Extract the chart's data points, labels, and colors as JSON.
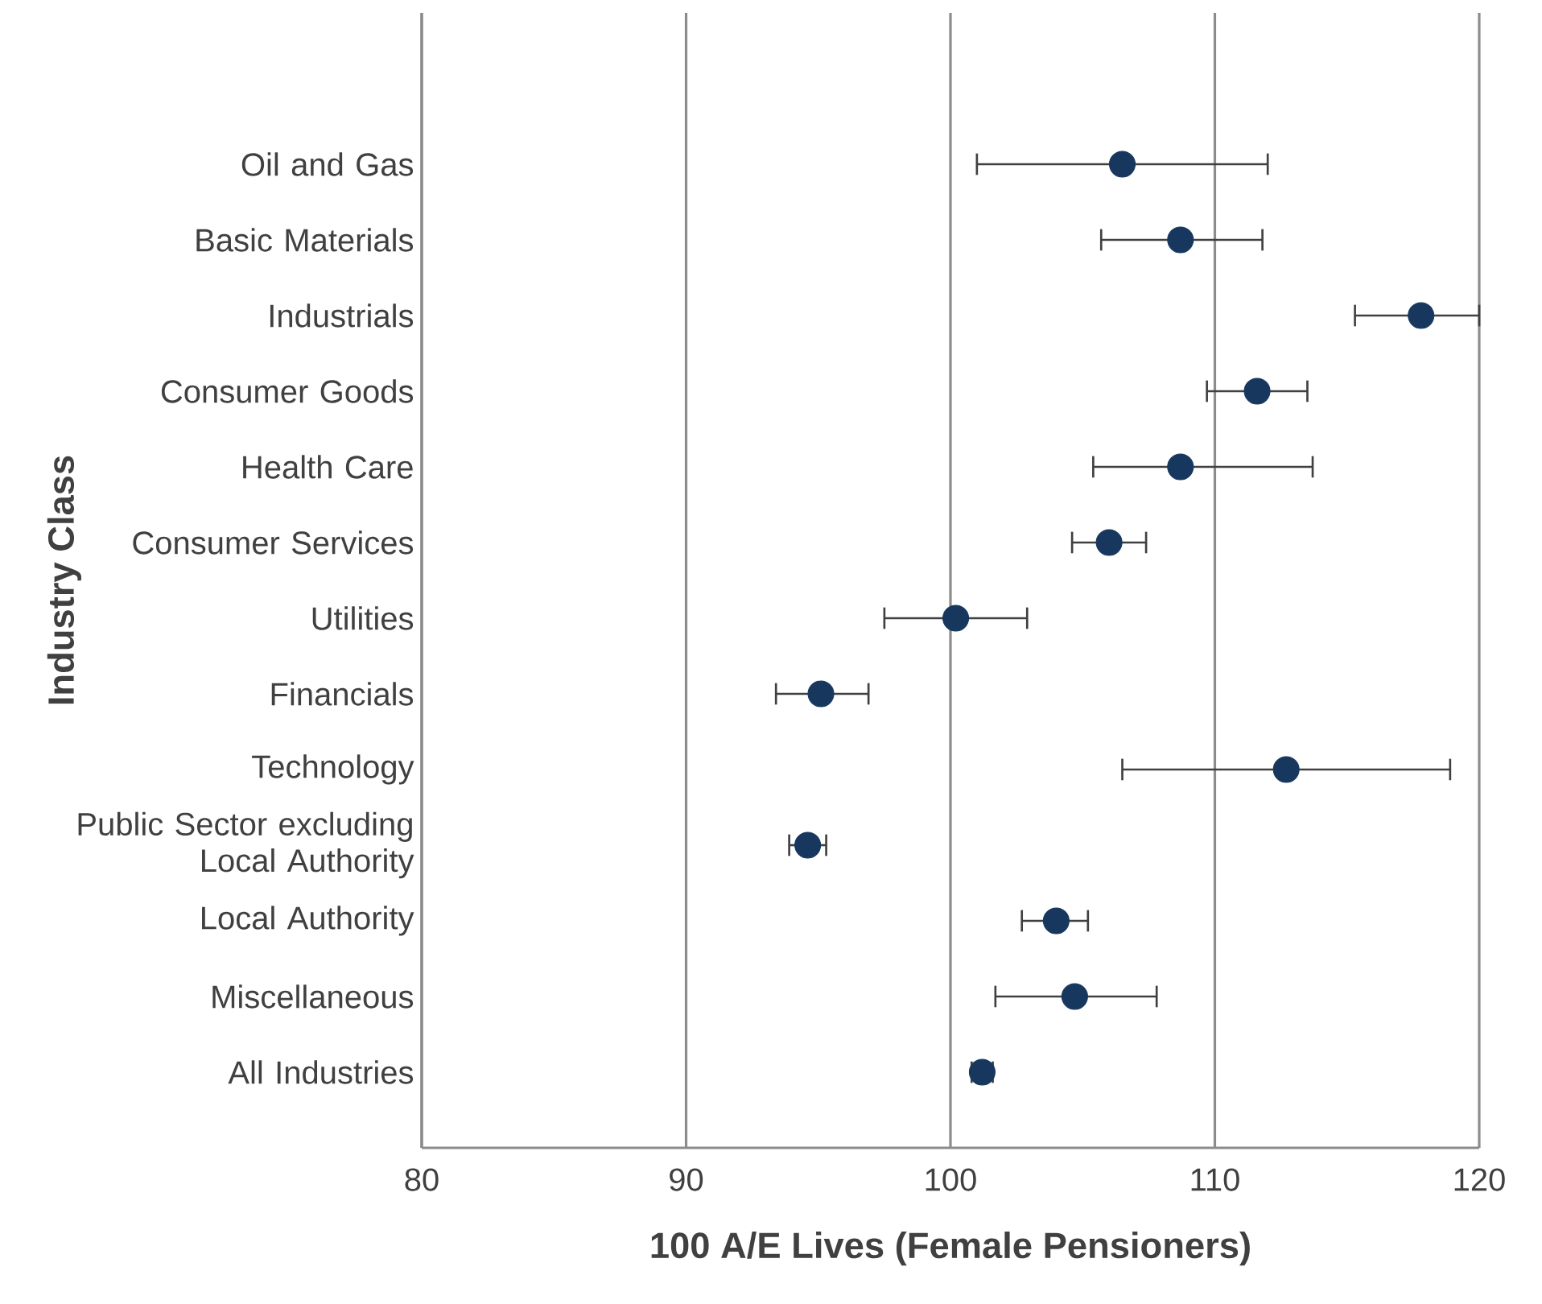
{
  "chart_data": {
    "type": "scatter",
    "orientation": "horizontal",
    "xlabel": "100 A/E Lives (Female Pensioners)",
    "ylabel": "Industry Class",
    "categories": [
      "Oil and Gas",
      "Basic Materials",
      "Industrials",
      "Consumer Goods",
      "Health Care",
      "Consumer Services",
      "Utilities",
      "Financials",
      "Technology",
      "Public Sector excluding Local Authority",
      "Local Authority",
      "Miscellaneous",
      "All Industries"
    ],
    "series": [
      {
        "color": "#17375e",
        "values": [
          106.5,
          108.7,
          117.8,
          111.6,
          108.7,
          106.0,
          100.2,
          95.1,
          112.7,
          94.6,
          104.0,
          104.7,
          101.2
        ],
        "errors": [
          [
            101.0,
            112.0
          ],
          [
            105.7,
            111.8
          ],
          [
            115.3,
            120.0
          ],
          [
            109.7,
            113.5
          ],
          [
            105.4,
            113.7
          ],
          [
            104.6,
            107.4
          ],
          [
            97.5,
            102.9
          ],
          [
            93.4,
            96.9
          ],
          [
            106.5,
            118.9
          ],
          [
            93.9,
            95.3
          ],
          [
            102.7,
            105.2
          ],
          [
            101.7,
            107.8
          ],
          [
            100.8,
            101.6
          ]
        ]
      }
    ],
    "xlim": [
      80,
      120
    ],
    "xticks": [
      80,
      90,
      100,
      110,
      120
    ],
    "grid": "x",
    "marker": "circle"
  }
}
